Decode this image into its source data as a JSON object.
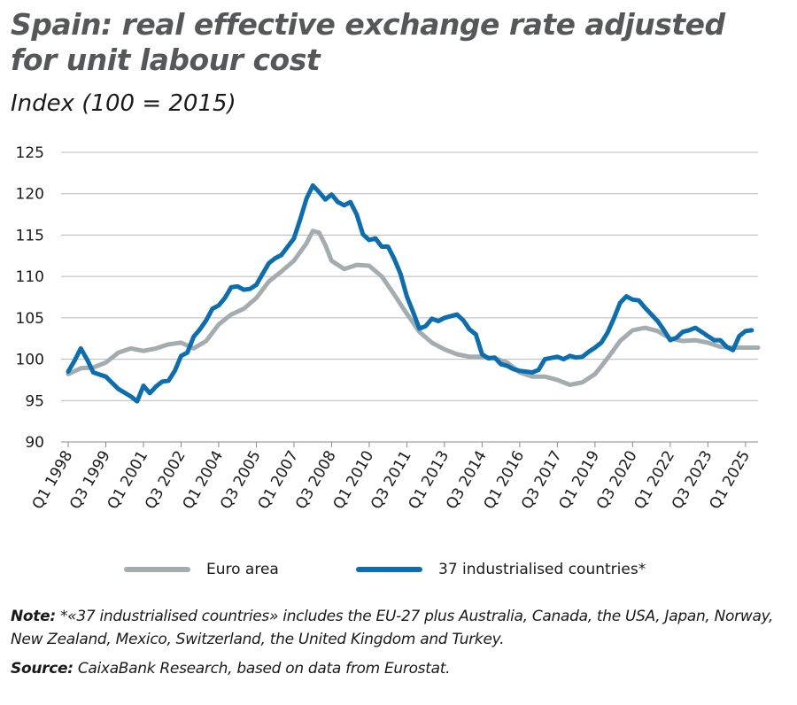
{
  "title_line1": "Spain: real effective exchange rate adjusted",
  "title_line2": "for unit labour cost",
  "subtitle": "Index (100 = 2015)",
  "note_label": "Note:",
  "note_text": " *«37 industrialised countries» includes the EU-27 plus Australia, Canada, the USA, Japan, Norway, New Zealand, Mexico, Switzerland, the United Kingdom and Turkey.",
  "source_label": "Source:",
  "source_text": " CaixaBank Research, based on data from Eurostat.",
  "colors": {
    "euro_area": "#a3acaf",
    "industrialised": "#0a6eb0",
    "grid": "#b8b8b8"
  },
  "chart_data": {
    "type": "line",
    "ylim": [
      90,
      125
    ],
    "yticks": [
      90,
      95,
      100,
      105,
      110,
      115,
      120,
      125
    ],
    "x_range": [
      "Q1 1998",
      "Q3 2025"
    ],
    "xtick_labels": [
      "Q1 1998",
      "Q3 1999",
      "Q1 2001",
      "Q3 2002",
      "Q1 2004",
      "Q3 2005",
      "Q1 2007",
      "Q3 2008",
      "Q1 2010",
      "Q3 2011",
      "Q1 2013",
      "Q3 2014",
      "Q1 2016",
      "Q3 2017",
      "Q1 2019",
      "Q3 2020",
      "Q1 2022",
      "Q3 2023",
      "Q1 2025"
    ],
    "grid": "horizontal",
    "legend_position": "bottom",
    "series": [
      {
        "name": "Euro area",
        "points": [
          [
            "Q1 1998",
            98.2
          ],
          [
            "Q3 1998",
            98.9
          ],
          [
            "Q1 1999",
            99.0
          ],
          [
            "Q3 1999",
            99.6
          ],
          [
            "Q1 2000",
            100.8
          ],
          [
            "Q3 2000",
            101.3
          ],
          [
            "Q1 2001",
            101.0
          ],
          [
            "Q3 2001",
            101.3
          ],
          [
            "Q1 2002",
            101.8
          ],
          [
            "Q3 2002",
            102.0
          ],
          [
            "Q1 2003",
            101.3
          ],
          [
            "Q3 2003",
            102.2
          ],
          [
            "Q1 2004",
            104.2
          ],
          [
            "Q3 2004",
            105.4
          ],
          [
            "Q1 2005",
            106.1
          ],
          [
            "Q3 2005",
            107.4
          ],
          [
            "Q1 2006",
            109.4
          ],
          [
            "Q3 2006",
            110.6
          ],
          [
            "Q1 2007",
            111.9
          ],
          [
            "Q3 2007",
            114.0
          ],
          [
            "Q4 2007",
            115.5
          ],
          [
            "Q1 2008",
            115.3
          ],
          [
            "Q2 2008",
            113.8
          ],
          [
            "Q3 2008",
            111.9
          ],
          [
            "Q1 2009",
            110.9
          ],
          [
            "Q3 2009",
            111.4
          ],
          [
            "Q1 2010",
            111.3
          ],
          [
            "Q3 2010",
            110.0
          ],
          [
            "Q1 2011",
            107.8
          ],
          [
            "Q3 2011",
            105.5
          ],
          [
            "Q1 2012",
            103.3
          ],
          [
            "Q3 2012",
            102.0
          ],
          [
            "Q1 2013",
            101.2
          ],
          [
            "Q3 2013",
            100.6
          ],
          [
            "Q1 2014",
            100.3
          ],
          [
            "Q3 2014",
            100.3
          ],
          [
            "Q1 2015",
            100.1
          ],
          [
            "Q3 2015",
            99.6
          ],
          [
            "Q1 2016",
            98.4
          ],
          [
            "Q3 2016",
            97.9
          ],
          [
            "Q1 2017",
            97.9
          ],
          [
            "Q3 2017",
            97.5
          ],
          [
            "Q1 2018",
            96.9
          ],
          [
            "Q3 2018",
            97.2
          ],
          [
            "Q1 2019",
            98.2
          ],
          [
            "Q3 2019",
            100.1
          ],
          [
            "Q1 2020",
            102.2
          ],
          [
            "Q3 2020",
            103.5
          ],
          [
            "Q1 2021",
            103.8
          ],
          [
            "Q3 2021",
            103.4
          ],
          [
            "Q1 2022",
            102.5
          ],
          [
            "Q3 2022",
            102.2
          ],
          [
            "Q1 2023",
            102.3
          ],
          [
            "Q3 2023",
            102.0
          ],
          [
            "Q1 2024",
            101.5
          ],
          [
            "Q3 2024",
            101.4
          ],
          [
            "Q1 2025",
            101.4
          ],
          [
            "Q3 2025",
            101.4
          ]
        ]
      },
      {
        "name": "37 industrialised countries*",
        "points": [
          [
            "Q1 1998",
            98.5
          ],
          [
            "Q2 1998",
            99.8
          ],
          [
            "Q3 1998",
            101.3
          ],
          [
            "Q4 1998",
            100.0
          ],
          [
            "Q1 1999",
            98.4
          ],
          [
            "Q3 1999",
            97.9
          ],
          [
            "Q1 2000",
            96.4
          ],
          [
            "Q3 2000",
            95.5
          ],
          [
            "Q4 2000",
            94.9
          ],
          [
            "Q1 2001",
            96.8
          ],
          [
            "Q2 2001",
            95.9
          ],
          [
            "Q3 2001",
            96.7
          ],
          [
            "Q4 2001",
            97.3
          ],
          [
            "Q1 2002",
            97.4
          ],
          [
            "Q2 2002",
            98.6
          ],
          [
            "Q3 2002",
            100.4
          ],
          [
            "Q4 2002",
            100.8
          ],
          [
            "Q1 2003",
            102.7
          ],
          [
            "Q2 2003",
            103.6
          ],
          [
            "Q3 2003",
            104.7
          ],
          [
            "Q4 2003",
            106.1
          ],
          [
            "Q1 2004",
            106.5
          ],
          [
            "Q2 2004",
            107.4
          ],
          [
            "Q3 2004",
            108.7
          ],
          [
            "Q4 2004",
            108.8
          ],
          [
            "Q1 2005",
            108.4
          ],
          [
            "Q2 2005",
            108.5
          ],
          [
            "Q3 2005",
            109.0
          ],
          [
            "Q4 2005",
            110.3
          ],
          [
            "Q1 2006",
            111.6
          ],
          [
            "Q2 2006",
            112.2
          ],
          [
            "Q3 2006",
            112.6
          ],
          [
            "Q4 2006",
            113.6
          ],
          [
            "Q1 2007",
            114.6
          ],
          [
            "Q2 2007",
            116.9
          ],
          [
            "Q3 2007",
            119.4
          ],
          [
            "Q4 2007",
            121.0
          ],
          [
            "Q1 2008",
            120.2
          ],
          [
            "Q2 2008",
            119.3
          ],
          [
            "Q3 2008",
            119.9
          ],
          [
            "Q4 2008",
            119.0
          ],
          [
            "Q1 2009",
            118.6
          ],
          [
            "Q2 2009",
            119.0
          ],
          [
            "Q3 2009",
            117.5
          ],
          [
            "Q4 2009",
            115.1
          ],
          [
            "Q1 2010",
            114.4
          ],
          [
            "Q2 2010",
            114.6
          ],
          [
            "Q3 2010",
            113.6
          ],
          [
            "Q4 2010",
            113.6
          ],
          [
            "Q1 2011",
            112.1
          ],
          [
            "Q2 2011",
            110.3
          ],
          [
            "Q3 2011",
            107.6
          ],
          [
            "Q4 2011",
            105.7
          ],
          [
            "Q1 2012",
            103.7
          ],
          [
            "Q2 2012",
            104.0
          ],
          [
            "Q3 2012",
            104.9
          ],
          [
            "Q4 2012",
            104.6
          ],
          [
            "Q1 2013",
            105.0
          ],
          [
            "Q3 2013",
            105.4
          ],
          [
            "Q4 2013",
            104.7
          ],
          [
            "Q1 2014",
            103.6
          ],
          [
            "Q2 2014",
            103.0
          ],
          [
            "Q3 2014",
            100.6
          ],
          [
            "Q4 2014",
            100.1
          ],
          [
            "Q1 2015",
            100.2
          ],
          [
            "Q2 2015",
            99.4
          ],
          [
            "Q3 2015",
            99.2
          ],
          [
            "Q4 2015",
            98.8
          ],
          [
            "Q1 2016",
            98.6
          ],
          [
            "Q3 2016",
            98.4
          ],
          [
            "Q4 2016",
            98.7
          ],
          [
            "Q1 2017",
            100.0
          ],
          [
            "Q3 2017",
            100.3
          ],
          [
            "Q4 2017",
            100.0
          ],
          [
            "Q1 2018",
            100.4
          ],
          [
            "Q2 2018",
            100.2
          ],
          [
            "Q3 2018",
            100.3
          ],
          [
            "Q4 2018",
            100.9
          ],
          [
            "Q1 2019",
            101.4
          ],
          [
            "Q2 2019",
            102.0
          ],
          [
            "Q3 2019",
            103.2
          ],
          [
            "Q4 2019",
            104.9
          ],
          [
            "Q1 2020",
            106.8
          ],
          [
            "Q2 2020",
            107.6
          ],
          [
            "Q3 2020",
            107.2
          ],
          [
            "Q4 2020",
            107.1
          ],
          [
            "Q1 2021",
            106.2
          ],
          [
            "Q2 2021",
            105.4
          ],
          [
            "Q3 2021",
            104.6
          ],
          [
            "Q4 2021",
            103.5
          ],
          [
            "Q1 2022",
            102.3
          ],
          [
            "Q2 2022",
            102.6
          ],
          [
            "Q3 2022",
            103.3
          ],
          [
            "Q4 2022",
            103.5
          ],
          [
            "Q1 2023",
            103.8
          ],
          [
            "Q2 2023",
            103.3
          ],
          [
            "Q3 2023",
            102.8
          ],
          [
            "Q4 2023",
            102.3
          ],
          [
            "Q1 2024",
            102.3
          ],
          [
            "Q2 2024",
            101.5
          ],
          [
            "Q3 2024",
            101.1
          ],
          [
            "Q4 2024",
            102.8
          ],
          [
            "Q1 2025",
            103.4
          ],
          [
            "Q2 2025",
            103.5
          ]
        ]
      }
    ]
  }
}
